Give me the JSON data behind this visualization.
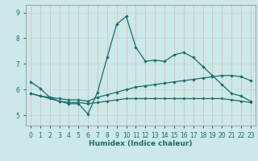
{
  "xlabel": "Humidex (Indice chaleur)",
  "bg_color": "#cce8e8",
  "line_color": "#1a6b6b",
  "grid_color": "#c0d8d8",
  "xlim": [
    -0.5,
    23.5
  ],
  "ylim": [
    4.6,
    9.3
  ],
  "yticks": [
    5,
    6,
    7,
    8,
    9
  ],
  "xticks": [
    0,
    1,
    2,
    3,
    4,
    5,
    6,
    7,
    8,
    9,
    10,
    11,
    12,
    13,
    14,
    15,
    16,
    17,
    18,
    19,
    20,
    21,
    22,
    23
  ],
  "line1_x": [
    0,
    1,
    2,
    3,
    4,
    5,
    6,
    7,
    8,
    9,
    10,
    11,
    12,
    13,
    14,
    15,
    16,
    17,
    18,
    19,
    20,
    21,
    22,
    23
  ],
  "line1_y": [
    6.3,
    6.05,
    5.7,
    5.55,
    5.45,
    5.45,
    5.05,
    5.9,
    7.25,
    8.55,
    8.85,
    7.65,
    7.1,
    7.15,
    7.1,
    7.35,
    7.45,
    7.25,
    6.9,
    6.55,
    6.2,
    5.85,
    5.75,
    5.55
  ],
  "line2_x": [
    0,
    1,
    2,
    3,
    4,
    5,
    6,
    7,
    8,
    9,
    10,
    11,
    12,
    13,
    14,
    15,
    16,
    17,
    18,
    19,
    20,
    21,
    22,
    23
  ],
  "line2_y": [
    5.85,
    5.75,
    5.7,
    5.65,
    5.6,
    5.6,
    5.55,
    5.7,
    5.8,
    5.9,
    6.0,
    6.1,
    6.15,
    6.2,
    6.25,
    6.3,
    6.35,
    6.4,
    6.45,
    6.5,
    6.55,
    6.55,
    6.5,
    6.35
  ],
  "line3_x": [
    0,
    1,
    2,
    3,
    4,
    5,
    6,
    7,
    8,
    9,
    10,
    11,
    12,
    13,
    14,
    15,
    16,
    17,
    18,
    19,
    20,
    21,
    22,
    23
  ],
  "line3_y": [
    5.85,
    5.75,
    5.65,
    5.55,
    5.5,
    5.5,
    5.45,
    5.5,
    5.55,
    5.6,
    5.65,
    5.65,
    5.65,
    5.65,
    5.65,
    5.65,
    5.65,
    5.65,
    5.65,
    5.65,
    5.65,
    5.6,
    5.55,
    5.5
  ],
  "xlabel_color": "#1a6b6b",
  "xlabel_fontsize": 6.5,
  "tick_fontsize": 5.5,
  "tick_color": "#1a6b6b"
}
